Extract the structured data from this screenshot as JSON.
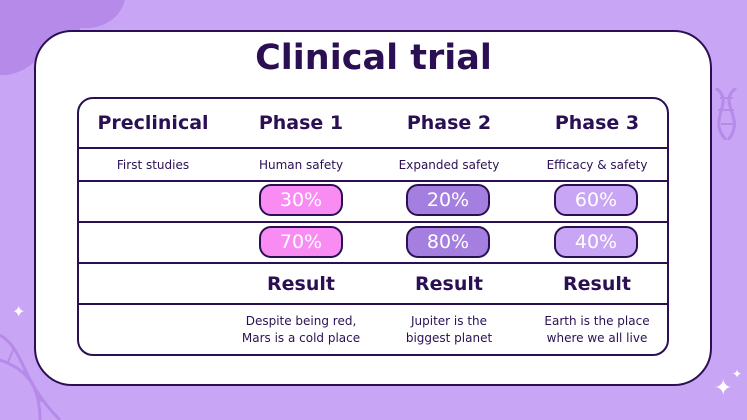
{
  "title": "Clinical trial",
  "headers": [
    "Preclinical",
    "Phase 1",
    "Phase 2",
    "Phase 3"
  ],
  "subheaders": [
    "First studies",
    "Human safety",
    "Expanded safety",
    "Efficacy & safety"
  ],
  "row1": [
    "30%",
    "20%",
    "60%"
  ],
  "row2": [
    "70%",
    "80%",
    "40%"
  ],
  "result_label": "Result",
  "descriptions": [
    {
      "line1": "Despite being red,",
      "line2": "Mars is a cold place"
    },
    {
      "line1": "Jupiter is the",
      "line2": "biggest planet"
    },
    {
      "line1": "Earth is the place",
      "line2": "where we all live"
    }
  ],
  "colors": {
    "background": "#c9a6f5",
    "outline": "#2a1052",
    "phase1_pill": "#f98cf3",
    "phase2_pill": "#a57fe0",
    "phase3_pill": "#c9a6f5"
  }
}
